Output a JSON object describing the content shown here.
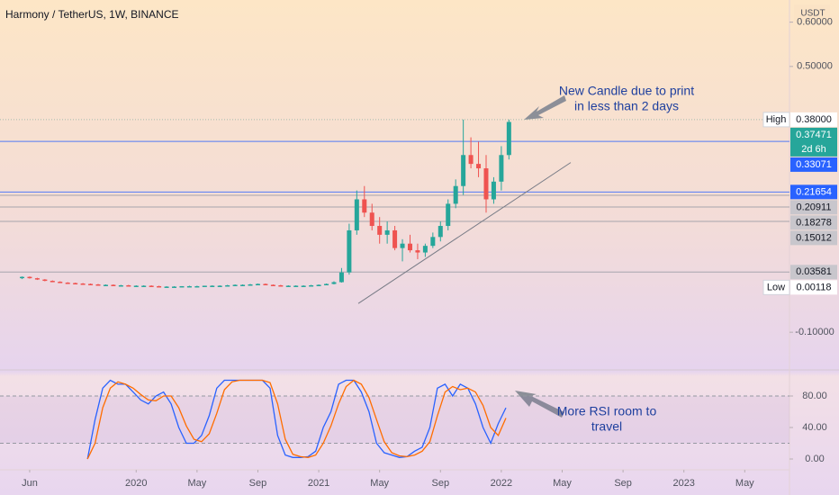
{
  "chart_data": [
    {
      "type": "candlestick",
      "title": "Harmony / TetherUS, 1W, BINANCE",
      "currency": "USDT",
      "xlim": [
        -1.95,
        49.94
      ],
      "ylim": [
        -0.183,
        0.65
      ],
      "yticks": [
        {
          "value": -0.1,
          "label": "-0.10000"
        },
        {
          "value": 0.5,
          "label": "0.50000"
        },
        {
          "value": 0.6,
          "label": "0.60000"
        }
      ],
      "up_color": "#26a69a",
      "down_color": "#ef5350",
      "x": [
        -0.5,
        0,
        0.5,
        1,
        1.5,
        2,
        2.5,
        3,
        3.5,
        4,
        4.5,
        5,
        5.5,
        6,
        6.5,
        7,
        7.5,
        8,
        8.5,
        9,
        9.5,
        10,
        10.5,
        11,
        11.5,
        12,
        12.5,
        13,
        13.5,
        14,
        14.5,
        15,
        15.5,
        16,
        16.5,
        17,
        17.5,
        18,
        18.5,
        19,
        19.5,
        20,
        20.5,
        21,
        21.5,
        22,
        22.5,
        23,
        23.5,
        24,
        24.5,
        25,
        25.5,
        26,
        26.5,
        27,
        27.5,
        28,
        28.5,
        29,
        29.5,
        30,
        30.5,
        31,
        31.5
      ],
      "ohlc": [
        [
          0.022,
          0.026,
          0.02,
          0.025
        ],
        [
          0.025,
          0.026,
          0.021,
          0.022
        ],
        [
          0.022,
          0.023,
          0.018,
          0.019
        ],
        [
          0.019,
          0.02,
          0.015,
          0.016
        ],
        [
          0.016,
          0.017,
          0.013,
          0.014
        ],
        [
          0.014,
          0.015,
          0.011,
          0.012
        ],
        [
          0.012,
          0.013,
          0.01,
          0.011
        ],
        [
          0.011,
          0.012,
          0.009,
          0.01
        ],
        [
          0.01,
          0.011,
          0.008,
          0.009
        ],
        [
          0.009,
          0.01,
          0.007,
          0.008
        ],
        [
          0.008,
          0.009,
          0.006,
          0.007
        ],
        [
          0.007,
          0.008,
          0.006,
          0.007
        ],
        [
          0.007,
          0.008,
          0.005,
          0.006
        ],
        [
          0.006,
          0.007,
          0.005,
          0.006
        ],
        [
          0.006,
          0.007,
          0.004,
          0.005
        ],
        [
          0.005,
          0.006,
          0.004,
          0.005
        ],
        [
          0.005,
          0.006,
          0.004,
          0.005
        ],
        [
          0.005,
          0.006,
          0.003,
          0.004
        ],
        [
          0.004,
          0.005,
          0.002,
          0.003
        ],
        [
          0.003,
          0.004,
          0.001,
          0.003
        ],
        [
          0.003,
          0.004,
          0.002,
          0.003
        ],
        [
          0.003,
          0.004,
          0.003,
          0.004
        ],
        [
          0.004,
          0.005,
          0.003,
          0.004
        ],
        [
          0.004,
          0.005,
          0.003,
          0.004
        ],
        [
          0.004,
          0.005,
          0.003,
          0.005
        ],
        [
          0.005,
          0.006,
          0.004,
          0.005
        ],
        [
          0.005,
          0.006,
          0.004,
          0.005
        ],
        [
          0.005,
          0.007,
          0.005,
          0.006
        ],
        [
          0.006,
          0.008,
          0.005,
          0.007
        ],
        [
          0.007,
          0.008,
          0.006,
          0.007
        ],
        [
          0.007,
          0.009,
          0.006,
          0.008
        ],
        [
          0.008,
          0.01,
          0.007,
          0.009
        ],
        [
          0.009,
          0.01,
          0.006,
          0.007
        ],
        [
          0.007,
          0.008,
          0.005,
          0.006
        ],
        [
          0.006,
          0.007,
          0.004,
          0.005
        ],
        [
          0.005,
          0.006,
          0.004,
          0.005
        ],
        [
          0.005,
          0.006,
          0.004,
          0.005
        ],
        [
          0.005,
          0.006,
          0.004,
          0.005
        ],
        [
          0.005,
          0.007,
          0.004,
          0.006
        ],
        [
          0.006,
          0.008,
          0.005,
          0.007
        ],
        [
          0.007,
          0.01,
          0.006,
          0.009
        ],
        [
          0.009,
          0.015,
          0.008,
          0.013
        ],
        [
          0.013,
          0.045,
          0.012,
          0.035
        ],
        [
          0.035,
          0.145,
          0.03,
          0.13
        ],
        [
          0.13,
          0.22,
          0.12,
          0.2
        ],
        [
          0.2,
          0.23,
          0.16,
          0.17
        ],
        [
          0.17,
          0.19,
          0.13,
          0.14
        ],
        [
          0.14,
          0.16,
          0.1,
          0.12
        ],
        [
          0.12,
          0.15,
          0.1,
          0.13
        ],
        [
          0.13,
          0.14,
          0.085,
          0.09
        ],
        [
          0.09,
          0.11,
          0.06,
          0.1
        ],
        [
          0.1,
          0.12,
          0.08,
          0.085
        ],
        [
          0.085,
          0.1,
          0.065,
          0.08
        ],
        [
          0.08,
          0.1,
          0.07,
          0.095
        ],
        [
          0.095,
          0.125,
          0.09,
          0.115
        ],
        [
          0.115,
          0.15,
          0.105,
          0.14
        ],
        [
          0.14,
          0.2,
          0.13,
          0.19
        ],
        [
          0.19,
          0.245,
          0.18,
          0.23
        ],
        [
          0.23,
          0.38,
          0.21,
          0.3
        ],
        [
          0.3,
          0.34,
          0.27,
          0.28
        ],
        [
          0.28,
          0.33,
          0.25,
          0.27
        ],
        [
          0.27,
          0.3,
          0.17,
          0.2
        ],
        [
          0.2,
          0.25,
          0.19,
          0.24
        ],
        [
          0.24,
          0.32,
          0.22,
          0.3
        ],
        [
          0.3,
          0.38,
          0.29,
          0.37471
        ]
      ],
      "price_lines": [
        {
          "value": 0.38,
          "label": "0.38000",
          "tag": "High",
          "bg": "#ffffff",
          "fg": "#131722",
          "line": "#8fb3a6",
          "dash": "1 2"
        },
        {
          "value": 0.37471,
          "label": "0.37471",
          "countdown": "2d 6h",
          "bg": "#26a69a",
          "fg": "#ffffff"
        },
        {
          "value": 0.33071,
          "label": "0.33071",
          "bg": "#2962ff",
          "fg": "#ffffff",
          "line": "#2962ff"
        },
        {
          "value": 0.21654,
          "label": "0.21654",
          "bg": "#2962ff",
          "fg": "#ffffff",
          "line": "#2962ff"
        },
        {
          "value": 0.20911,
          "label": "0.20911",
          "bg": "#c8c6cc",
          "fg": "#131722",
          "line": "#9598a1"
        },
        {
          "value": 0.18278,
          "label": "0.18278",
          "bg": "#c8c6cc",
          "fg": "#131722",
          "line": "#9598a1"
        },
        {
          "value": 0.15012,
          "label": "0.15012",
          "bg": "#c8c6cc",
          "fg": "#131722",
          "line": "#9598a1"
        },
        {
          "value": 0.03581,
          "label": "0.03581",
          "bg": "#c8c6cc",
          "fg": "#131722",
          "line": "#9598a1"
        },
        {
          "value": 0.00118,
          "label": "0.00118",
          "tag": "Low",
          "bg": "#ffffff",
          "fg": "#131722"
        }
      ],
      "trendline": {
        "x": [
          21.6,
          35.56
        ],
        "y": [
          -0.035,
          0.283
        ],
        "color": "#787b86"
      },
      "annotation": [
        "New Candle due to print",
        "in less than 2 days"
      ]
    },
    {
      "type": "line",
      "xlim": [
        -1.95,
        49.94
      ],
      "ylim": [
        -13.7,
        112
      ],
      "xticks": [
        {
          "value": 0,
          "label": "Jun"
        },
        {
          "value": 7,
          "label": "2020"
        },
        {
          "value": 11,
          "label": "May"
        },
        {
          "value": 15,
          "label": "Sep"
        },
        {
          "value": 19,
          "label": "2021"
        },
        {
          "value": 23,
          "label": "May"
        },
        {
          "value": 27,
          "label": "Sep"
        },
        {
          "value": 31,
          "label": "2022"
        },
        {
          "value": 35,
          "label": "May"
        },
        {
          "value": 39,
          "label": "Sep"
        },
        {
          "value": 43,
          "label": "2023"
        },
        {
          "value": 47,
          "label": "May"
        }
      ],
      "yticks": [
        {
          "value": 0,
          "label": "0.00"
        },
        {
          "value": 40,
          "label": "40.00"
        },
        {
          "value": 80,
          "label": "80.00"
        }
      ],
      "band": [
        20,
        80
      ],
      "x": [
        3.8,
        4.3,
        4.8,
        5.3,
        5.8,
        6.3,
        6.8,
        7.3,
        7.8,
        8.3,
        8.8,
        9.3,
        9.8,
        10.3,
        10.8,
        11.3,
        11.8,
        12.3,
        12.8,
        13.3,
        13.8,
        14.3,
        14.8,
        15.3,
        15.8,
        16.3,
        16.8,
        17.3,
        17.8,
        18.3,
        18.8,
        19.3,
        19.8,
        20.3,
        20.8,
        21.3,
        21.8,
        22.3,
        22.8,
        23.3,
        23.8,
        24.3,
        24.8,
        25.3,
        25.8,
        26.3,
        26.8,
        27.3,
        27.8,
        28.3,
        28.8,
        29.3,
        29.8,
        30.3,
        30.8,
        31.3
      ],
      "series": [
        {
          "color": "#2962ff",
          "values": [
            0,
            50,
            90,
            100,
            95,
            95,
            85,
            75,
            70,
            80,
            85,
            70,
            40,
            20,
            20,
            30,
            55,
            90,
            100,
            100,
            100,
            100,
            100,
            100,
            90,
            30,
            5,
            2,
            2,
            3,
            10,
            40,
            60,
            95,
            100,
            100,
            85,
            60,
            20,
            8,
            5,
            2,
            3,
            10,
            15,
            40,
            90,
            95,
            80,
            95,
            90,
            70,
            40,
            20,
            45,
            65
          ]
        },
        {
          "color": "#ff6d00",
          "values": [
            0,
            20,
            65,
            90,
            98,
            95,
            90,
            82,
            75,
            74,
            80,
            80,
            65,
            42,
            25,
            22,
            32,
            58,
            88,
            98,
            100,
            100,
            100,
            100,
            97,
            70,
            25,
            6,
            3,
            2,
            5,
            20,
            42,
            70,
            92,
            100,
            95,
            78,
            50,
            22,
            8,
            4,
            3,
            5,
            10,
            22,
            55,
            85,
            92,
            88,
            90,
            85,
            68,
            40,
            30,
            52
          ]
        }
      ],
      "annotation": [
        "More RSI room to",
        "travel"
      ]
    }
  ]
}
